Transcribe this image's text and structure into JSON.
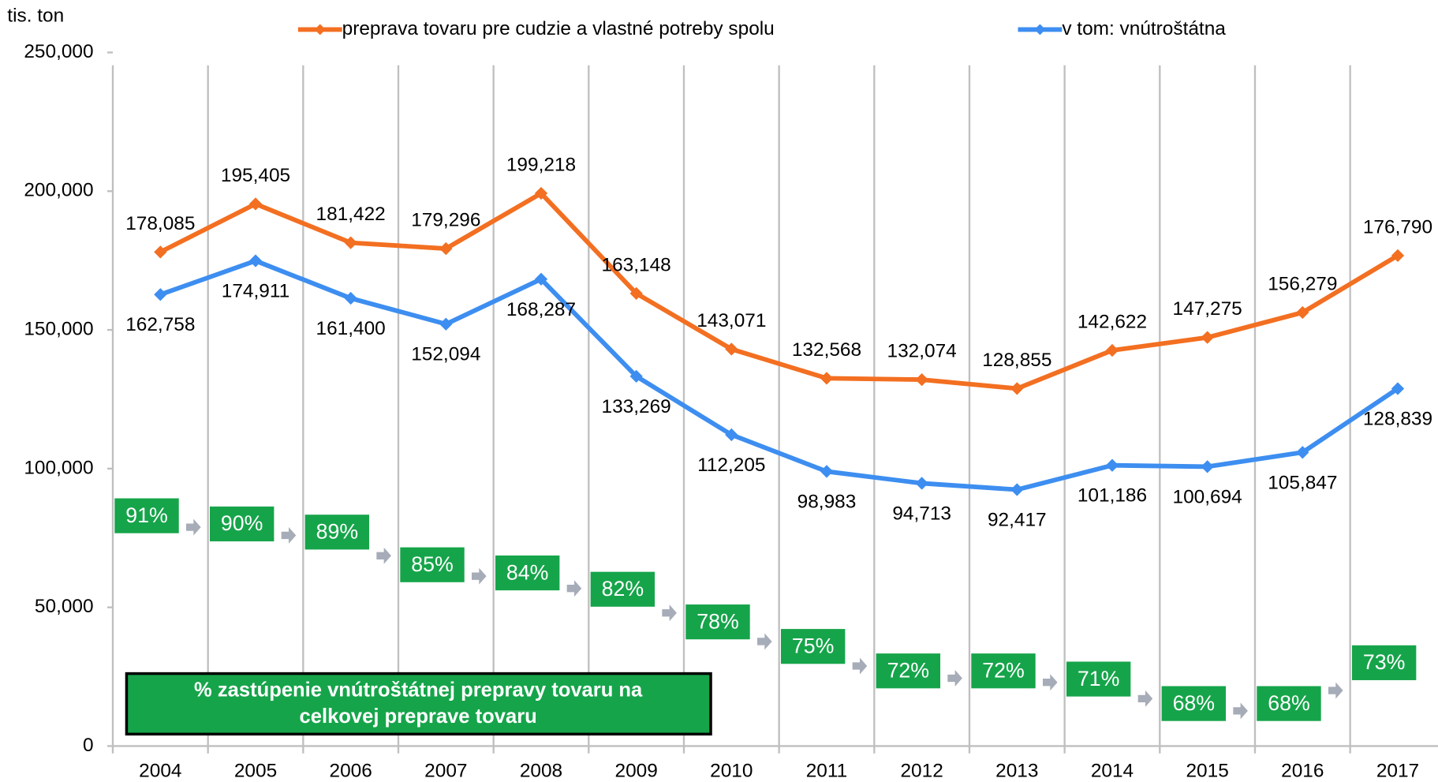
{
  "chart_data": {
    "type": "line",
    "y_unit": "tis. ton",
    "categories": [
      "2004",
      "2005",
      "2006",
      "2007",
      "2008",
      "2009",
      "2010",
      "2011",
      "2012",
      "2013",
      "2014",
      "2015",
      "2016",
      "2017"
    ],
    "ylim": [
      0,
      250000
    ],
    "yticks": [
      0,
      {
        "value": 50000,
        "label": "50,000"
      },
      {
        "value": 100000,
        "label": "100,000"
      },
      {
        "value": 150000,
        "label": "150,000"
      },
      {
        "value": 200000,
        "label": "200,000"
      },
      {
        "value": 250000,
        "label": "250,000"
      }
    ],
    "grid": true,
    "legend": "top",
    "series": [
      {
        "name": "preprava tovaru pre cudzie a vlastné potreby spolu",
        "color": "#f36f21",
        "values": [
          178085,
          195405,
          181422,
          179296,
          199218,
          163148,
          143071,
          132568,
          132074,
          128855,
          142622,
          147275,
          156279,
          176790
        ],
        "value_labels": [
          "178,085",
          "195,405",
          "181,422",
          "179,296",
          "199,218",
          "163,148",
          "143,071",
          "132,568",
          "132,074",
          "128,855",
          "142,622",
          "147,275",
          "156,279",
          "176,790"
        ]
      },
      {
        "name": "v tom: vnútroštátna",
        "color": "#3d8ef0",
        "values": [
          162758,
          174911,
          161400,
          152094,
          168287,
          133269,
          112205,
          98983,
          94713,
          92417,
          101186,
          100694,
          105847,
          128839
        ],
        "value_labels": [
          "162,758",
          "174,911",
          "161,400",
          "152,094",
          "168,287",
          "133,269",
          "112,205",
          "98,983",
          "94,713",
          "92,417",
          "101,186",
          "100,694",
          "105,847",
          "128,839"
        ]
      }
    ],
    "share": {
      "title_lines": [
        "% zastúpenie vnútroštátnej prepravy tovaru na",
        "celkovej preprave tovaru"
      ],
      "values": [
        91,
        90,
        89,
        85,
        84,
        82,
        78,
        75,
        72,
        72,
        71,
        68,
        68,
        73
      ],
      "value_labels": [
        "91%",
        "90%",
        "89%",
        "85%",
        "84%",
        "82%",
        "78%",
        "75%",
        "72%",
        "72%",
        "71%",
        "68%",
        "68%",
        "73%"
      ]
    }
  }
}
